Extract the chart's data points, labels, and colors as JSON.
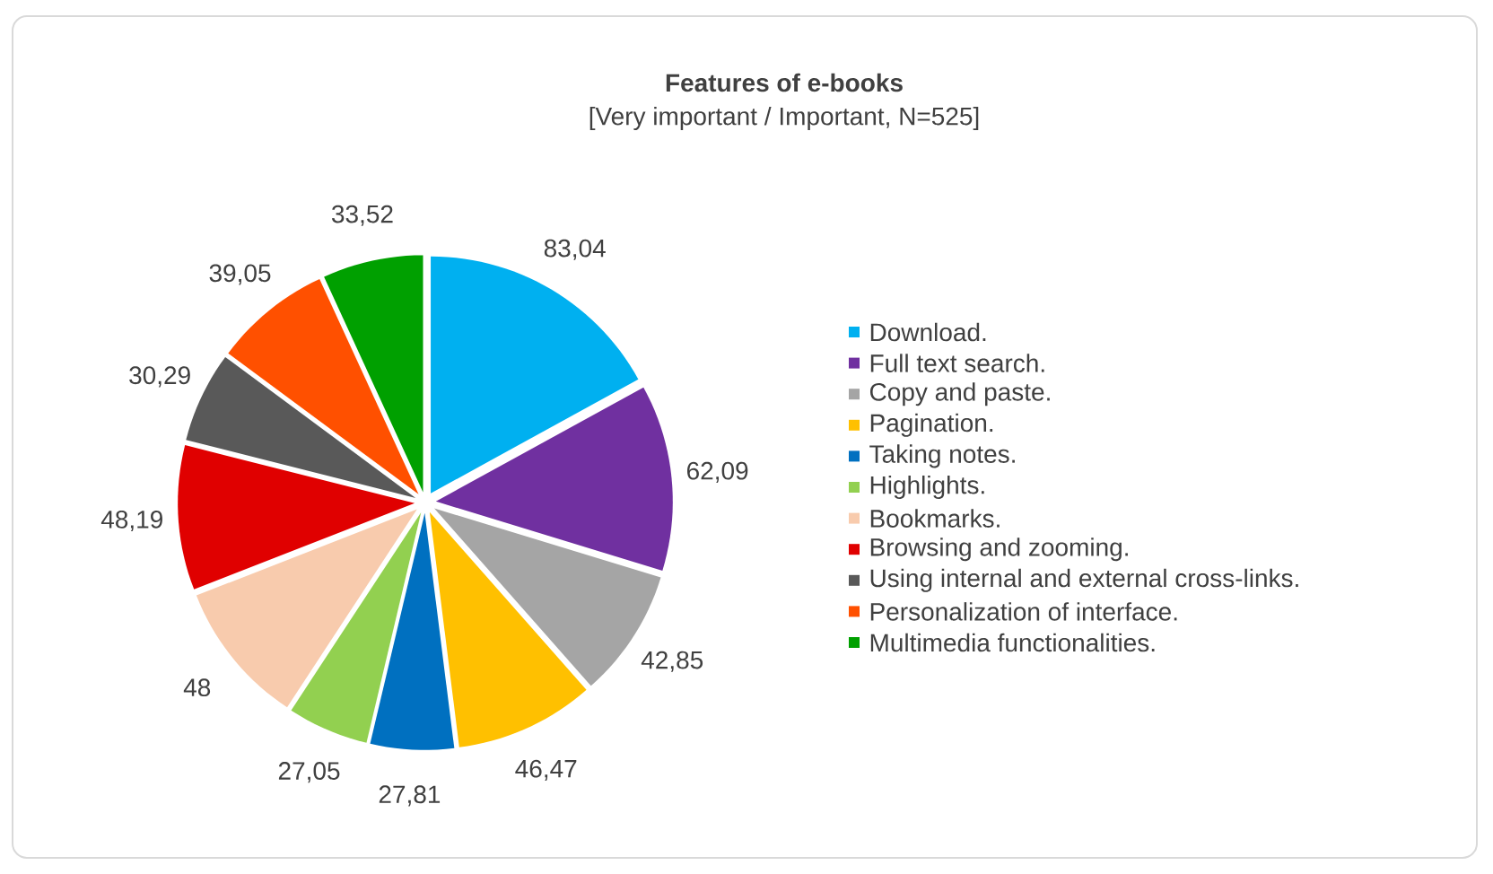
{
  "chart_data": {
    "type": "pie",
    "title": "Features of e-books",
    "subtitle": "[Very important / Important, N=525]",
    "categories": [
      "Download.",
      "Full text search.",
      "Copy and paste.",
      "Pagination.",
      "Taking notes.",
      "Highlights.",
      "Bookmarks.",
      "Browsing and zooming.",
      "Using internal and external cross-links.",
      "Personalization of interface.",
      "Multimedia functionalities."
    ],
    "values": [
      83.04,
      62.09,
      42.85,
      46.47,
      27.81,
      27.05,
      48,
      48.19,
      30.29,
      39.05,
      33.52
    ],
    "value_labels": [
      "83,04",
      "62,09",
      "42,85",
      "46,47",
      "27,81",
      "27,05",
      "48",
      "48,19",
      "30,29",
      "39,05",
      "33,52"
    ],
    "colors": [
      "#00b0f0",
      "#7030a0",
      "#a5a5a5",
      "#ffc000",
      "#0070c0",
      "#92d050",
      "#f8cbad",
      "#e00000",
      "#595959",
      "#ff5000",
      "#00a000"
    ],
    "legend": "right"
  }
}
